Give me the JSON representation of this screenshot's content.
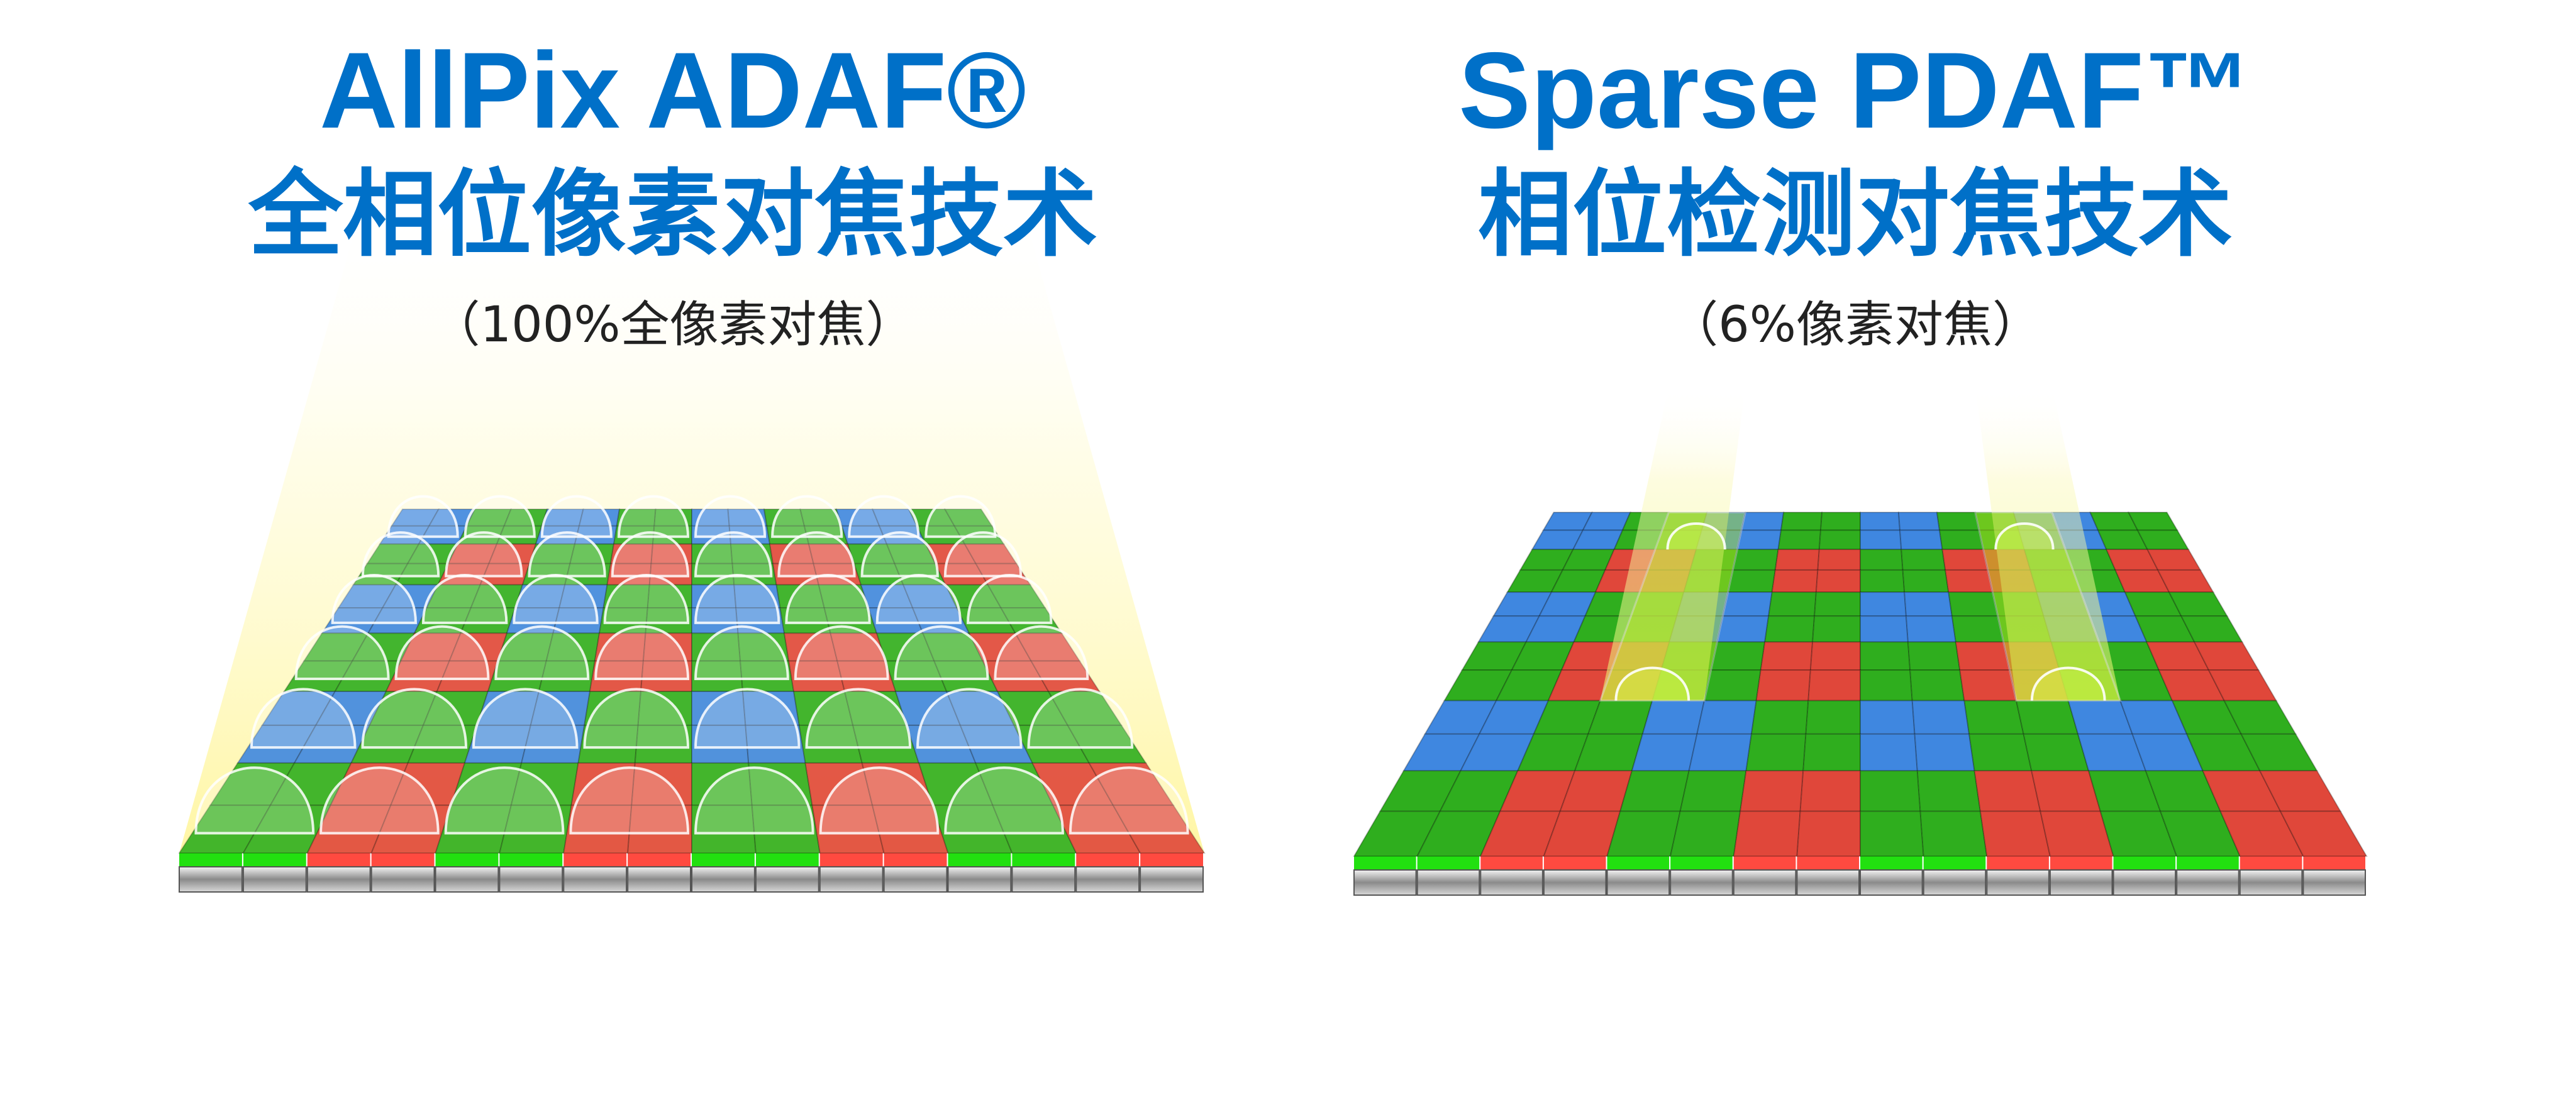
{
  "left": {
    "title": "AllPix ADAF®",
    "subtitle": "全相位像素对焦技术",
    "note": "（100%全像素对焦）"
  },
  "right": {
    "title": "Sparse PDAF™",
    "subtitle": "相位检测对焦技术",
    "note": "（6%像素对焦）"
  },
  "colors": {
    "title": "#0070c8",
    "note": "#222222",
    "green": "#2fae1e",
    "red": "#e0473a",
    "blue": "#3f87e0",
    "pdaf_highlight": "#b8e61e",
    "glow": "#fff7a0"
  }
}
